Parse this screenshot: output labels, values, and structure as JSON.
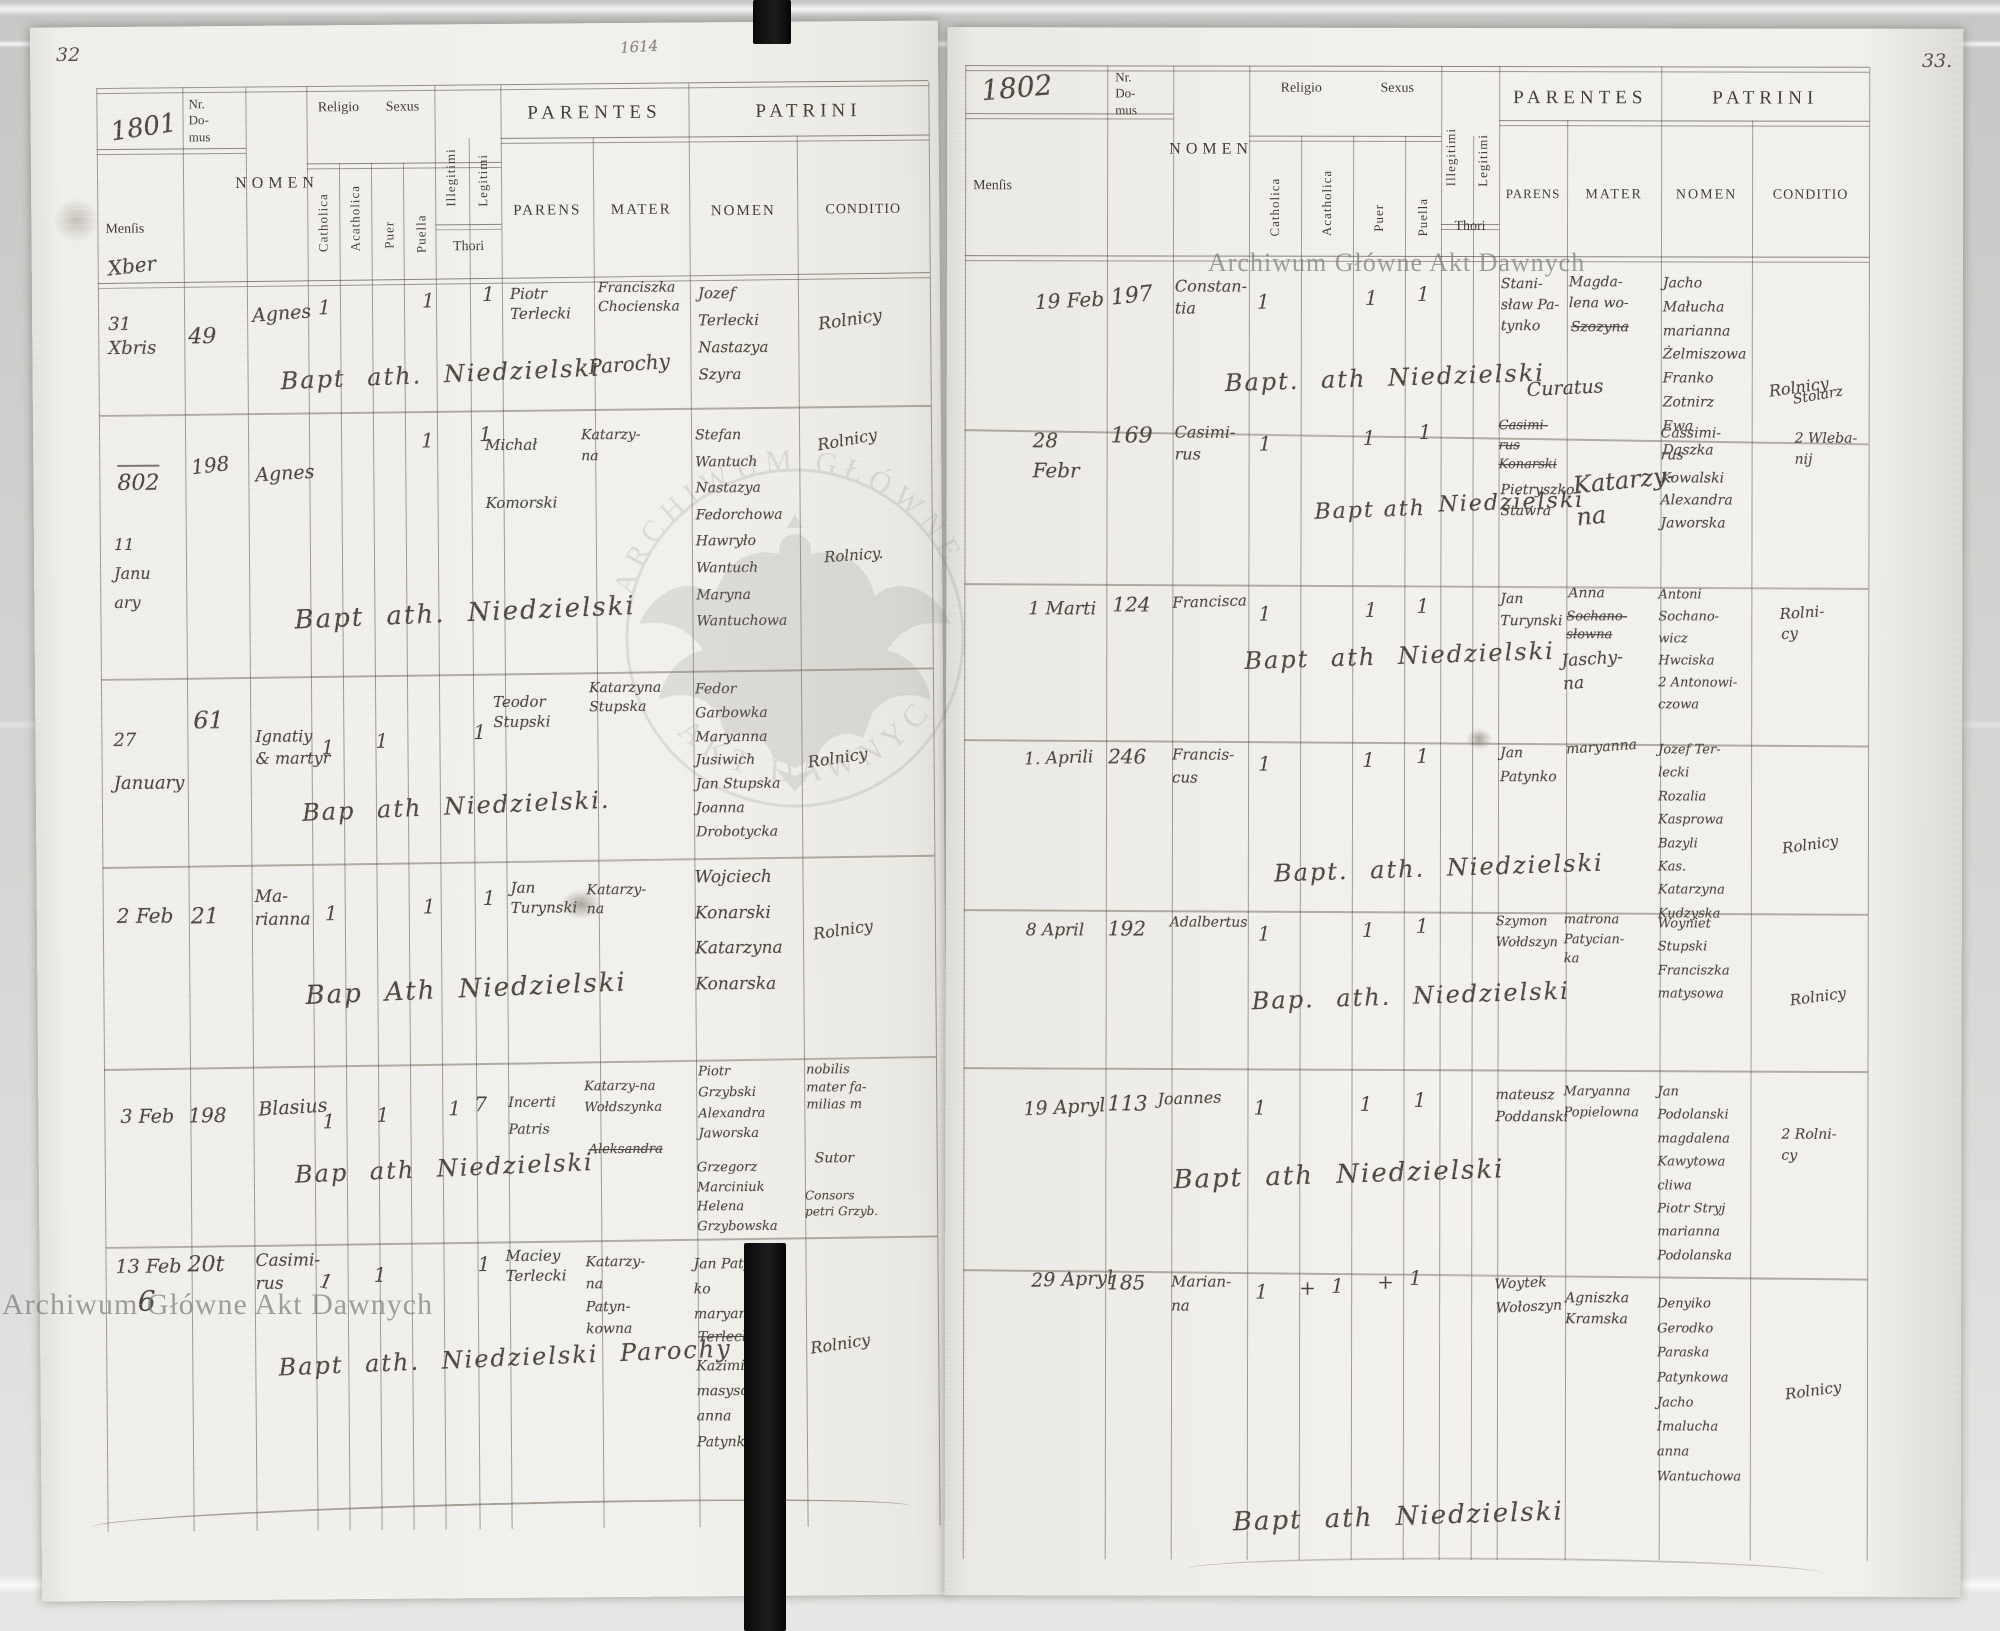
{
  "watermarks": {
    "archive": "Archiwum Główne Akt Dawnych",
    "stamp_top": "ARCHIWUM GŁÓWNE",
    "stamp_bottom": "AKT DAWNYCH"
  },
  "columns": {
    "mensis": "Menſis",
    "nr": "Nr.\nDo-\nmus",
    "nomen": "NOMEN",
    "religio": "Religio",
    "sexus": "Sexus",
    "catholica": "Catholica",
    "acatholica": "Acatholica",
    "puer": "Puer",
    "puella": "Puella",
    "illegitimi": "Illegitimi",
    "legitimi": "Legitimi",
    "thori": "Thori",
    "parentes": "PARENTES",
    "parens": "PARENS",
    "mater": "MATER",
    "patrini": "PATRINI",
    "patrini_nomen": "NOMEN",
    "conditio": "CONDITIO"
  },
  "left_page": {
    "page_number": "32",
    "year": "1801",
    "month_note": "Xber",
    "pencil_note": "1614",
    "rows": [
      {
        "mensis": "31\nXbris",
        "nr": "49",
        "nomen": "Agnes",
        "marks": {
          "catholica": "1",
          "puella": "1",
          "legitimi": "1"
        },
        "parens": "Piotr\nTerlecki",
        "mater": "Franciszka\nChocienska",
        "patrini": "Jozef\nTerlecki\nNastazya\nSzyra",
        "conditio": "Rolnicy",
        "note": "Bapt ath. Niedzielski",
        "note2": "Parochy"
      },
      {
        "mensis": "802",
        "mensis2": "11\nJanu\nary",
        "nr": "198",
        "nomen": "Agnes",
        "marks": {
          "puella": "1",
          "legitimi": "1"
        },
        "parens": "Michał\nKomorski",
        "mater": "Katarzy-\nna",
        "patrini": "Stefan\nWantuch\nNastazya\nFedorchowa\nHawryło\nWantuch\nMaryna\nWantuchowa",
        "conditio": "Rolnicy",
        "conditio2": "Rolnicy.",
        "note": "Bapt ath. Niedzielski"
      },
      {
        "mensis": "27\nJanuary",
        "nr": "61",
        "nomen": "Ignatiy\n& martyr",
        "marks": {
          "catholica": "1",
          "puer": "1",
          "legitimi": "1"
        },
        "parens": "Teodor\nStupski",
        "mater": "Katarzyna\nStupska",
        "patrini": "Fedor\nGarbowka\nMaryanna\nJusiwich\nJan Stupska\nJoanna\nDrobotycka",
        "conditio": "Rolnicy",
        "note": "Bap ath Niedzielski."
      },
      {
        "mensis": "2 Feb",
        "nr": "21",
        "nomen": "Ma-\nrianna",
        "marks": {
          "catholica": "1",
          "puella": "1",
          "legitimi": "1"
        },
        "parens": "Jan\nTurynski",
        "mater": "Katarzy-\nna",
        "patrini": "Wojciech\nKonarski\nKatarzyna\nKonarska",
        "conditio": "Rolnicy",
        "note": "Bap Ath Niedzielski"
      },
      {
        "mensis": "3 Feb",
        "nr": "198",
        "nomen": "Blasius",
        "marks": {
          "catholica": "1",
          "puer": "1",
          "illegitimi": "1",
          "legitimi": "7"
        },
        "parens": "Incerti\nPatris",
        "mater": "Katarzy-na\nWołdszynka",
        "mater_struck": "Aleksandra",
        "patrini": "Piotr\nGrzybski\nAlexandra\nJaworska",
        "patrini2": "Grzegorz\nMarciniuk\nHelena\nGrzybowska",
        "conditio": "nobilis\nmater fa-\nmilias m",
        "conditio2": "Sutor",
        "conditio3": "Consors\npetri Grzyb.",
        "note": "Bap ath Niedzielski"
      },
      {
        "mensis": "13 Feb",
        "mensis2": "6",
        "nr": "20t",
        "nomen": "Casimi-\nrus",
        "marks": {
          "catholica": "1",
          "puer": "1",
          "legitimi": "1"
        },
        "parens": "Maciey\nTerlecki",
        "mater": "Katarzy-\nna\nPatyn-\nkowna",
        "patrini": "Jan Patyn-\nko\nmaryanna",
        "patrini_struck": "Terlecka",
        "patrini2": "Kazimierz\nmasysow\nanna\nPatynkowa",
        "conditio": "Rolnicy",
        "note": "Bapt ath. Niedzielski Parochy"
      }
    ]
  },
  "right_page": {
    "page_number": "33.",
    "year": "1802",
    "rows": [
      {
        "mensis": "19 Feb",
        "nr": "197",
        "nomen": "Constan-\ntia",
        "marks": {
          "catholica": "1",
          "puella": "1",
          "legitimi": "1"
        },
        "parens": "Stani-\nsław Pa-\ntynko",
        "mater": "Magda-\nlena wo-",
        "mater_struck": "Szozyna",
        "patrini": "Jacho\nMałucha\nmarianna\nŻelmiszowa\nFranko\nZotnirz\nEwa\nDaszka",
        "conditio": "Rolnicy",
        "note": "Bapt. ath Niedzielski",
        "note2": "Curatus"
      },
      {
        "mensis": "28\nFebr",
        "nr": "169",
        "nomen": "Casimi-\nrus",
        "marks": {
          "catholica": "1",
          "puer": "1",
          "legitimi": "1"
        },
        "parens_struck": "Casimi-\nrus\nKonarski",
        "parens2": "Pietryszko\nStawra",
        "mater": "Katarzy-\nna",
        "patrini": "Cassimi-\nrus\nKowalski\nAlexandra\nJaworska",
        "conditio": "Stolarz",
        "conditio2": "2 Wleba-\nnij",
        "note": "Bapt ath",
        "note2": "Niedzielski"
      },
      {
        "mensis": "1 Marti",
        "nr": "124",
        "nomen": "Francisca",
        "marks": {
          "catholica": "1",
          "puella": "1",
          "legitimi": "1"
        },
        "parens": "Jan\nTurynski",
        "mater": "Anna",
        "mater_struck": "Sochano-\nsłowna",
        "mater2": "Jaschy-\nna",
        "patrini": "Antoni\nSochano-\nwicz\nHwciska\n2 Antonowi-\nczowa",
        "conditio": "Rolni-\ncy",
        "note": "Bapt ath Niedzielski"
      },
      {
        "mensis": "1. Aprili",
        "nr": "246",
        "nomen": "Francis-\ncus",
        "marks": {
          "catholica": "1",
          "puer": "1",
          "legitimi": "1"
        },
        "parens": "Jan\nPatynko",
        "mater": "maryanna",
        "patrini": "Jozef Ter-\nlecki\nRozalia\nKasprowa\nBazyli\nKas.\nKatarzyna\nKudzyska",
        "conditio": "Rolnicy",
        "note": "Bapt. ath. Niedzielski"
      },
      {
        "mensis": "8 April",
        "nr": "192",
        "nomen": "Adalbertus",
        "marks": {
          "catholica": "1",
          "puer": "1",
          "legitimi": "1"
        },
        "parens": "Szymon\nWołdszyn",
        "mater": "matrona\nPatycian-\nka",
        "patrini": "Woyniet\nStupski\nFranciszka\nmatysowa",
        "conditio": "Rolnicy",
        "note": "Bap. ath. Niedzielski"
      },
      {
        "mensis": "19 Apryl",
        "nr": "113",
        "nomen": "Joannes",
        "marks": {
          "catholica": "1",
          "puer": "1",
          "legitimi": "1"
        },
        "parens": "mateusz\nPoddanski",
        "mater": "Maryanna\nPopielowna",
        "patrini": "Jan\nPodolanski\nmagdalena\nKawytowa\ncliwa\nPiotr Stryj\nmarianna\nPodolanska",
        "conditio": "2 Rolni-\ncy",
        "note": "Bapt ath Niedzielski"
      },
      {
        "mensis": "29 Apryl",
        "nr": "185",
        "nomen": "Marian-\nna",
        "marks": {
          "catholica": "1",
          "acatholica": "+",
          "puer": "1",
          "puella": "+",
          "legitimi": "1"
        },
        "parens": "Woytek\nWołoszyn",
        "mater": "Agniszka\nKramska",
        "patrini": "Denyiko\nGerodko\nParaska\nPatynkowa\nJacho\nImalucha\nanna\nWantuchowa",
        "conditio": "Rolnicy",
        "note": "Bapt ath Niedzielski"
      }
    ]
  }
}
